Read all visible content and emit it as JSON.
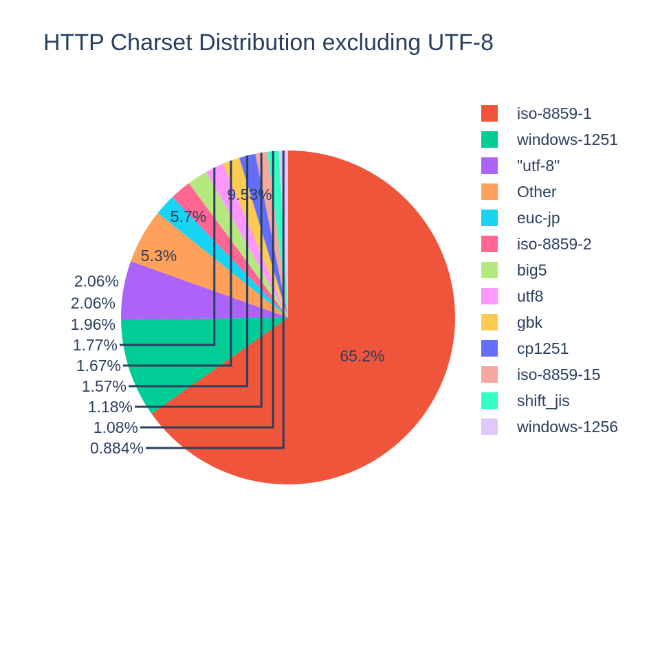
{
  "chart_data": {
    "type": "pie",
    "title": "HTTP Charset Distribution excluding UTF-8",
    "text_color": "#2a3f5f",
    "legend_position": "right",
    "label_format": "percent",
    "slices": [
      {
        "label": "iso-8859-1",
        "percent": 65.2,
        "display": "65.2%",
        "color": "#EF553B",
        "label_position": "inside"
      },
      {
        "label": "windows-1251",
        "percent": 9.53,
        "display": "9.53%",
        "color": "#00CC96",
        "label_position": "inside"
      },
      {
        "label": "\"utf-8\"",
        "percent": 5.7,
        "display": "5.7%",
        "color": "#AB63FA",
        "label_position": "inside"
      },
      {
        "label": "Other",
        "percent": 5.3,
        "display": "5.3%",
        "color": "#FFA15A",
        "label_position": "inside"
      },
      {
        "label": "euc-jp",
        "percent": 2.06,
        "display": "2.06%",
        "color": "#19D3F3",
        "label_position": "outside"
      },
      {
        "label": "iso-8859-2",
        "percent": 2.06,
        "display": "2.06%",
        "color": "#FF6692",
        "label_position": "outside"
      },
      {
        "label": "big5",
        "percent": 1.96,
        "display": "1.96%",
        "color": "#B6E880",
        "label_position": "outside"
      },
      {
        "label": "utf8",
        "percent": 1.77,
        "display": "1.77%",
        "color": "#FF97FF",
        "label_position": "outside"
      },
      {
        "label": "gbk",
        "percent": 1.67,
        "display": "1.67%",
        "color": "#FECB52",
        "label_position": "outside"
      },
      {
        "label": "cp1251",
        "percent": 1.57,
        "display": "1.57%",
        "color": "#636EFA",
        "label_position": "outside"
      },
      {
        "label": "iso-8859-15",
        "percent": 1.18,
        "display": "1.18%",
        "color": "#F7A89E",
        "label_position": "outside"
      },
      {
        "label": "shift_jis",
        "percent": 1.08,
        "display": "1.08%",
        "color": "#33FFC4",
        "label_position": "outside"
      },
      {
        "label": "windows-1256",
        "percent": 0.884,
        "display": "0.884%",
        "color": "#E0C8FA",
        "label_position": "outside"
      }
    ]
  }
}
